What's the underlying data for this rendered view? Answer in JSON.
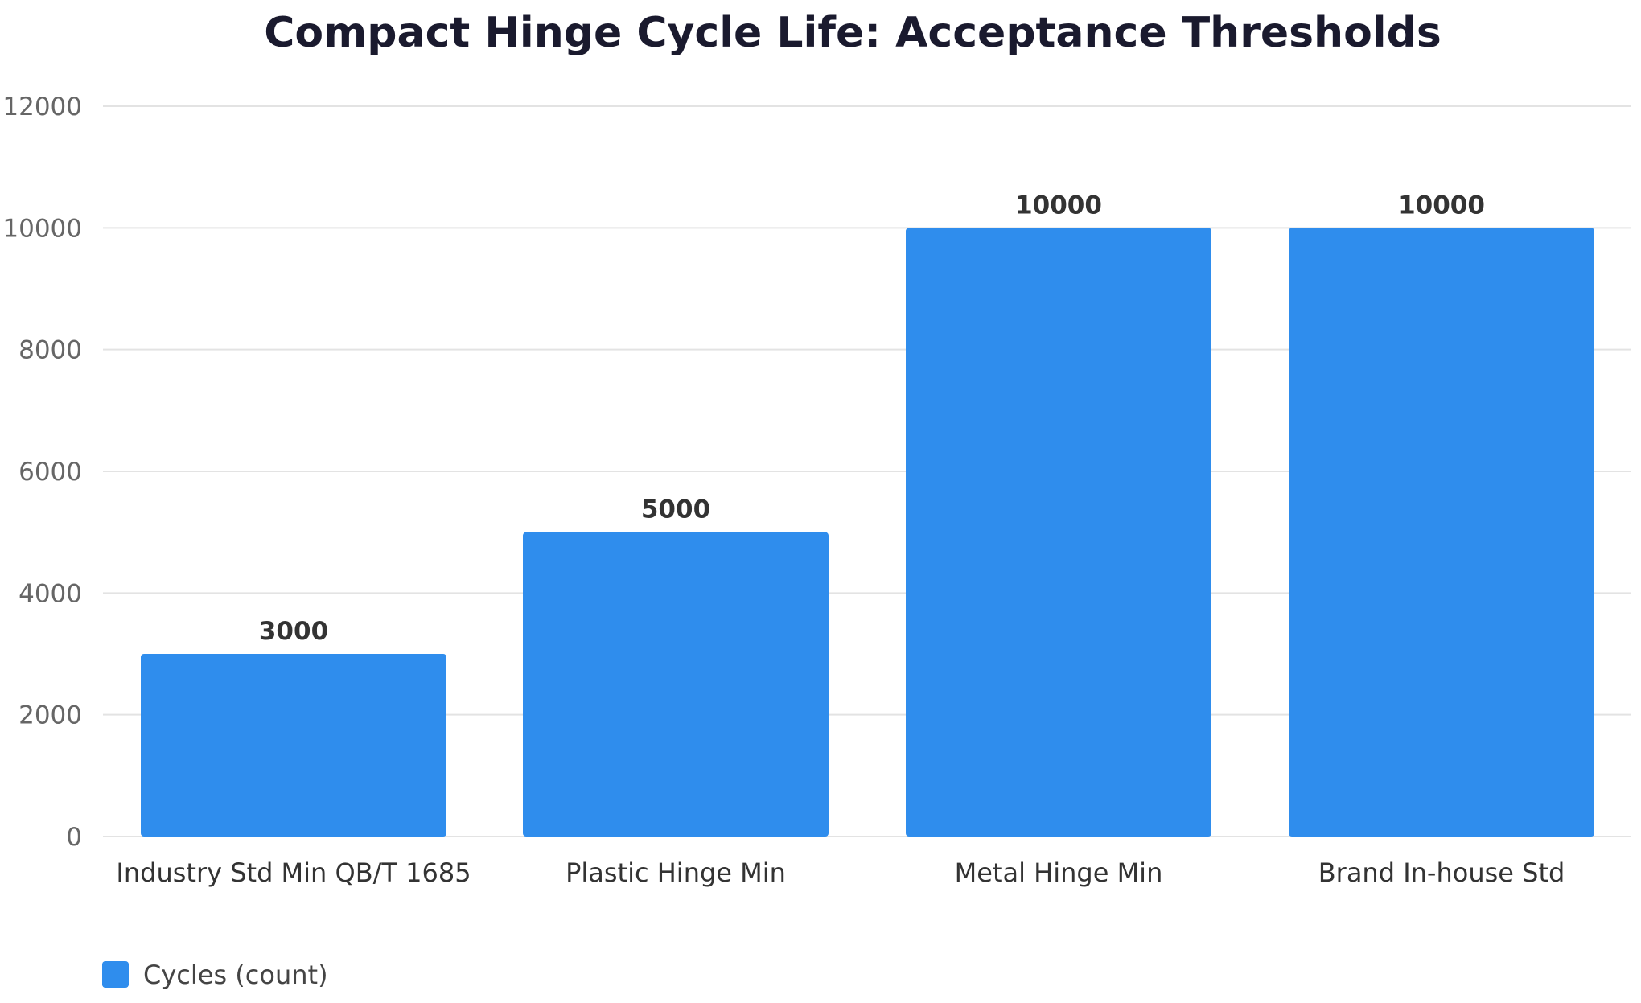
{
  "chart_data": {
    "type": "bar",
    "title": "Compact Hinge Cycle Life: Acceptance Thresholds",
    "xlabel": "",
    "ylabel": "",
    "categories": [
      "Industry Std Min QB/T 1685",
      "Plastic Hinge Min",
      "Metal Hinge Min",
      "Brand In-house Std"
    ],
    "series": [
      {
        "name": "Cycles (count)",
        "values": [
          3000,
          5000,
          10000,
          10000
        ],
        "color": "#2f8ded"
      }
    ],
    "ylim": [
      0,
      12000
    ],
    "yticks": [
      0,
      2000,
      4000,
      6000,
      8000,
      10000,
      12000
    ],
    "grid": true,
    "data_labels": true,
    "legend_position": "bottom-left"
  }
}
